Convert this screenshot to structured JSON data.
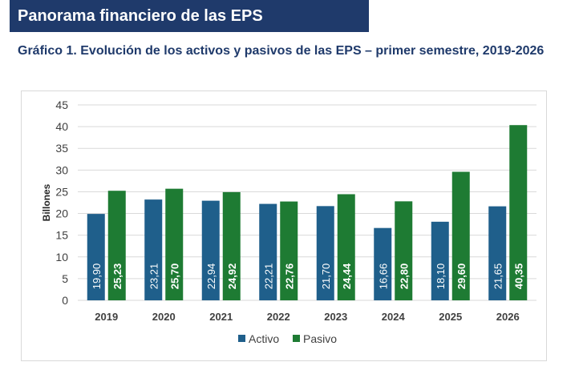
{
  "header": {
    "banner_title": "Panorama financiero de las EPS",
    "chart_title": "Gráfico 1. Evolución de los activos y pasivos de las EPS – primer semestre, 2019-2026"
  },
  "colors": {
    "banner": "#1f3a6b",
    "activo": "#1f5f8b",
    "pasivo": "#1e7b33",
    "grid": "#d9d9d9"
  },
  "chart_data": {
    "type": "bar",
    "title": "",
    "xlabel": "",
    "ylabel": "Billones",
    "ylim": [
      0,
      45
    ],
    "yticks": [
      0,
      5,
      10,
      15,
      20,
      25,
      30,
      35,
      40,
      45
    ],
    "grid": true,
    "legend_position": "bottom",
    "categories": [
      "2019",
      "2020",
      "2021",
      "2022",
      "2023",
      "2024",
      "2025",
      "2026"
    ],
    "series": [
      {
        "name": "Activo",
        "values": [
          19.9,
          23.21,
          22.94,
          22.21,
          21.7,
          16.66,
          18.1,
          21.65
        ],
        "labels": [
          "19,90",
          "23,21",
          "22,94",
          "22,21",
          "21,70",
          "16,66",
          "18,10",
          "21,65"
        ]
      },
      {
        "name": "Pasivo",
        "values": [
          25.23,
          25.7,
          24.92,
          22.76,
          24.44,
          22.8,
          29.6,
          40.35
        ],
        "labels": [
          "25,23",
          "25,70",
          "24,92",
          "22,76",
          "24,44",
          "22,80",
          "29,60",
          "40,35"
        ]
      }
    ]
  }
}
